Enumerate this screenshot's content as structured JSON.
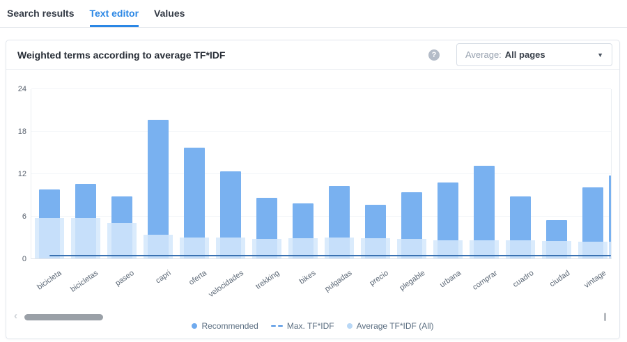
{
  "tabs": {
    "items": [
      {
        "label": "Search results"
      },
      {
        "label": "Text editor"
      },
      {
        "label": "Values"
      }
    ],
    "active": "Text editor"
  },
  "card": {
    "title": "Weighted terms according to average TF*IDF",
    "help_icon": "?",
    "dropdown": {
      "label": "Average:",
      "value": "All pages",
      "caret_icon": "▼"
    }
  },
  "legend": {
    "items": [
      {
        "label": "Recommended",
        "marker": "dot-medium"
      },
      {
        "label": "Max. TF*IDF",
        "marker": "dashes"
      },
      {
        "label": "Average TF*IDF (All)",
        "marker": "dot-light"
      }
    ]
  },
  "scrollbar": {
    "left_arrow_icon": "‹"
  },
  "colors": {
    "accent_blue": "#2b87e5",
    "bar_recommended": "#79b1f0",
    "bar_average_overlay": "rgba(212,232,252,0.85)",
    "max_line": "#3a72b2",
    "legend_dash": "#4a90e2",
    "legend_dot_light": "#b9d8f6"
  },
  "chart_data": {
    "type": "bar",
    "title": "Weighted terms according to average TF*IDF",
    "categories": [
      "bicicleta",
      "bicicletas",
      "paseo",
      "capri",
      "oferta",
      "velocidades",
      "trekking",
      "bikes",
      "pulgadas",
      "precio",
      "plegable",
      "urbana",
      "comprar",
      "cuadro",
      "ciudad",
      "vintage"
    ],
    "series": [
      {
        "name": "Recommended",
        "type": "bar",
        "color": "#79b1f0",
        "values": [
          9.7,
          10.5,
          8.8,
          19.6,
          15.6,
          12.3,
          8.6,
          7.8,
          10.2,
          7.6,
          9.3,
          10.7,
          13.1,
          8.8,
          5.4,
          10.0
        ]
      },
      {
        "name": "Average TF*IDF (All)",
        "type": "bar-overlay",
        "color": "rgba(212,232,252,0.85)",
        "values": [
          5.7,
          5.7,
          5.0,
          3.3,
          3.0,
          3.0,
          2.8,
          2.9,
          3.0,
          2.9,
          2.8,
          2.6,
          2.6,
          2.6,
          2.5,
          2.4
        ]
      },
      {
        "name": "Max. TF*IDF",
        "type": "line",
        "color": "#3a72b2",
        "value": 0.3
      }
    ],
    "partial_next_bar": {
      "recommended": 11.7,
      "average": 2.4
    },
    "xlabel": "",
    "ylabel": "",
    "ylim": [
      0,
      24
    ],
    "yticks": [
      0,
      6,
      12,
      18,
      24
    ],
    "grid": true,
    "legend_position": "bottom"
  }
}
